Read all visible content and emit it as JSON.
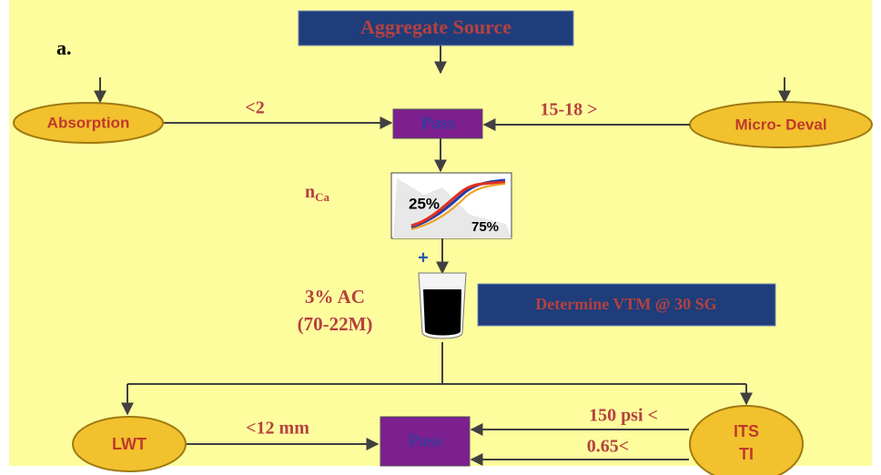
{
  "label": "a.",
  "source": "Aggregate Source",
  "absorption": {
    "label": "Absorption",
    "condition": "<2"
  },
  "micro_deval": {
    "label": "Micro- Deval",
    "condition": "15-18 >"
  },
  "pass_top": "Pass",
  "gradation": {
    "symbol": "n",
    "subscript": "Ca",
    "low": "25%",
    "high": "75%"
  },
  "plus": "+",
  "binder": {
    "line1": "3% AC",
    "line2": "(70-22M)"
  },
  "determine": "Determine VTM @ 30 SG",
  "lwt": {
    "label": "LWT",
    "condition": "<12 mm"
  },
  "pass_bottom": "Pass",
  "its": {
    "label1": "ITS",
    "label2": "TI",
    "condition1": "150 psi <",
    "condition2": "0.65<"
  }
}
